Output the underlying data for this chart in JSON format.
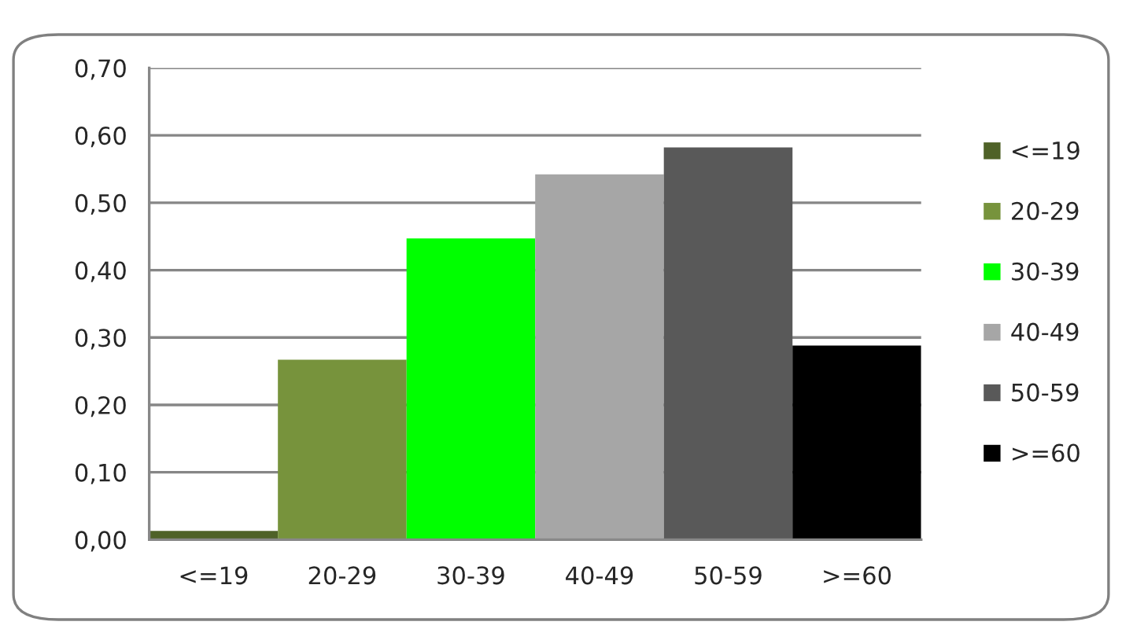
{
  "chart_data": {
    "type": "bar",
    "categories": [
      "<=19",
      "20-29",
      "30-39",
      "40-49",
      "50-59",
      ">=60"
    ],
    "series": [
      {
        "name": "<=19",
        "color": "#4f6228",
        "values": [
          0.013,
          null,
          null,
          null,
          null,
          null
        ]
      },
      {
        "name": "20-29",
        "color": "#77933c",
        "values": [
          null,
          0.267,
          null,
          null,
          null,
          null
        ]
      },
      {
        "name": "30-39",
        "color": "#00ff00",
        "values": [
          null,
          null,
          0.447,
          null,
          null,
          null
        ]
      },
      {
        "name": "40-49",
        "color": "#a6a6a6",
        "values": [
          null,
          null,
          null,
          0.542,
          null,
          null
        ]
      },
      {
        "name": "50-59",
        "color": "#595959",
        "values": [
          null,
          null,
          null,
          null,
          0.582,
          null
        ]
      },
      {
        "name": ">=60",
        "color": "#000000",
        "values": [
          null,
          null,
          null,
          null,
          null,
          0.288
        ]
      }
    ],
    "ylim": [
      0,
      0.7
    ],
    "yticks": [
      {
        "value": 0,
        "label": "0,00"
      },
      {
        "value": 0.1,
        "label": "0,10"
      },
      {
        "value": 0.2,
        "label": "0,20"
      },
      {
        "value": 0.3,
        "label": "0,30"
      },
      {
        "value": 0.4,
        "label": "0,40"
      },
      {
        "value": 0.5,
        "label": "0,50"
      },
      {
        "value": 0.6,
        "label": "0,60"
      },
      {
        "value": 0.7,
        "label": "0,70"
      }
    ],
    "grid": "y",
    "legend": "right"
  }
}
